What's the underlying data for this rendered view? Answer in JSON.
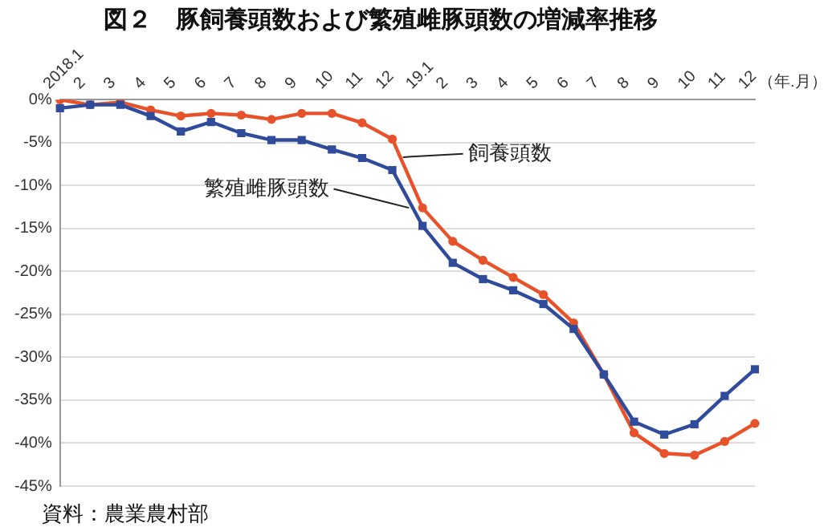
{
  "chart_data": {
    "type": "line",
    "title": "図２　豚飼養頭数および繁殖雌豚頭数の増減率推移",
    "xlabel": "（年.月）",
    "annotations": [
      "資料：農業農村部"
    ],
    "categories": [
      "2018.1",
      "2",
      "3",
      "4",
      "5",
      "6",
      "7",
      "8",
      "9",
      "10",
      "11",
      "12",
      "19.1",
      "2",
      "3",
      "4",
      "5",
      "6",
      "7",
      "8",
      "9",
      "10",
      "11",
      "12"
    ],
    "series": [
      {
        "name": "飼養頭数",
        "color": "#e8522a",
        "marker": "circle",
        "values": [
          0,
          -0.6,
          -0.3,
          -1.2,
          -1.9,
          -1.6,
          -1.8,
          -2.3,
          -1.6,
          -1.6,
          -2.7,
          -4.6,
          -12.6,
          -16.5,
          -18.7,
          -20.7,
          -22.7,
          -26.0,
          -32.0,
          -38.8,
          -41.2,
          -41.4,
          -39.8,
          -37.7
        ]
      },
      {
        "name": "繁殖雌豚頭数",
        "color": "#2f4b9a",
        "marker": "square",
        "values": [
          -1.0,
          -0.6,
          -0.6,
          -1.9,
          -3.7,
          -2.6,
          -3.9,
          -4.7,
          -4.7,
          -5.8,
          -6.8,
          -8.2,
          -14.7,
          -19.0,
          -20.9,
          -22.2,
          -23.8,
          -26.7,
          -32.0,
          -37.5,
          -39.0,
          -37.8,
          -34.5,
          -31.4
        ]
      }
    ],
    "ylim": [
      -45,
      0
    ],
    "yticks": [
      {
        "value": 0,
        "label": "0%"
      },
      {
        "value": -5,
        "label": "-5%"
      },
      {
        "value": -10,
        "label": "-10%"
      },
      {
        "value": -15,
        "label": "-15%"
      },
      {
        "value": -20,
        "label": "-20%"
      },
      {
        "value": -25,
        "label": "-25%"
      },
      {
        "value": -30,
        "label": "-30%"
      },
      {
        "value": -35,
        "label": "-35%"
      },
      {
        "value": -40,
        "label": "-40%"
      },
      {
        "value": -45,
        "label": "-45%"
      }
    ],
    "grid": "y",
    "legend": false,
    "line_style": "solid"
  }
}
